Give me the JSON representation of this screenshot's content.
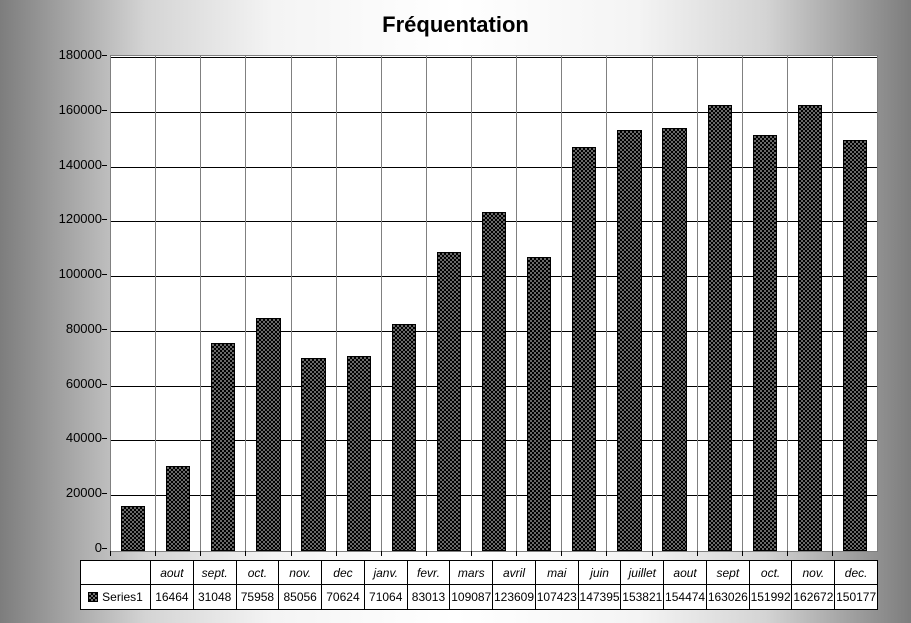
{
  "chart": {
    "type": "bar",
    "title": "Fréquentation",
    "title_fontsize": 22,
    "title_weight": "bold",
    "background_gradient": [
      "#7d7d7d",
      "#ffffff",
      "#7d7d7d"
    ],
    "plot_background": "#ffffff",
    "gridline_color": "#000000",
    "border_color": "#808080",
    "y": {
      "min": 0,
      "max": 180000,
      "step": 20000,
      "ticks": [
        "0",
        "20000",
        "40000",
        "60000",
        "80000",
        "100000",
        "120000",
        "140000",
        "160000",
        "180000"
      ],
      "fontsize": 13
    },
    "categories": [
      "aout",
      "sept.",
      "oct.",
      "nov.",
      "dec",
      "janv.",
      "fevr.",
      "mars",
      "avril",
      "mai",
      "juin",
      "juillet",
      "aout",
      "sept",
      "oct.",
      "nov.",
      "dec."
    ],
    "series_name": "Series1",
    "values": [
      16464,
      31048,
      75958,
      85056,
      70624,
      71064,
      83013,
      109087,
      123609,
      107423,
      147395,
      153821,
      154474,
      163026,
      151992,
      162672,
      150177
    ],
    "category_fontsize": 12,
    "category_fontstyle": "italic",
    "value_fontsize": 12,
    "bar_color": "#000000",
    "bar_pattern": "dotted-white",
    "bar_width_ratio": 0.55
  }
}
